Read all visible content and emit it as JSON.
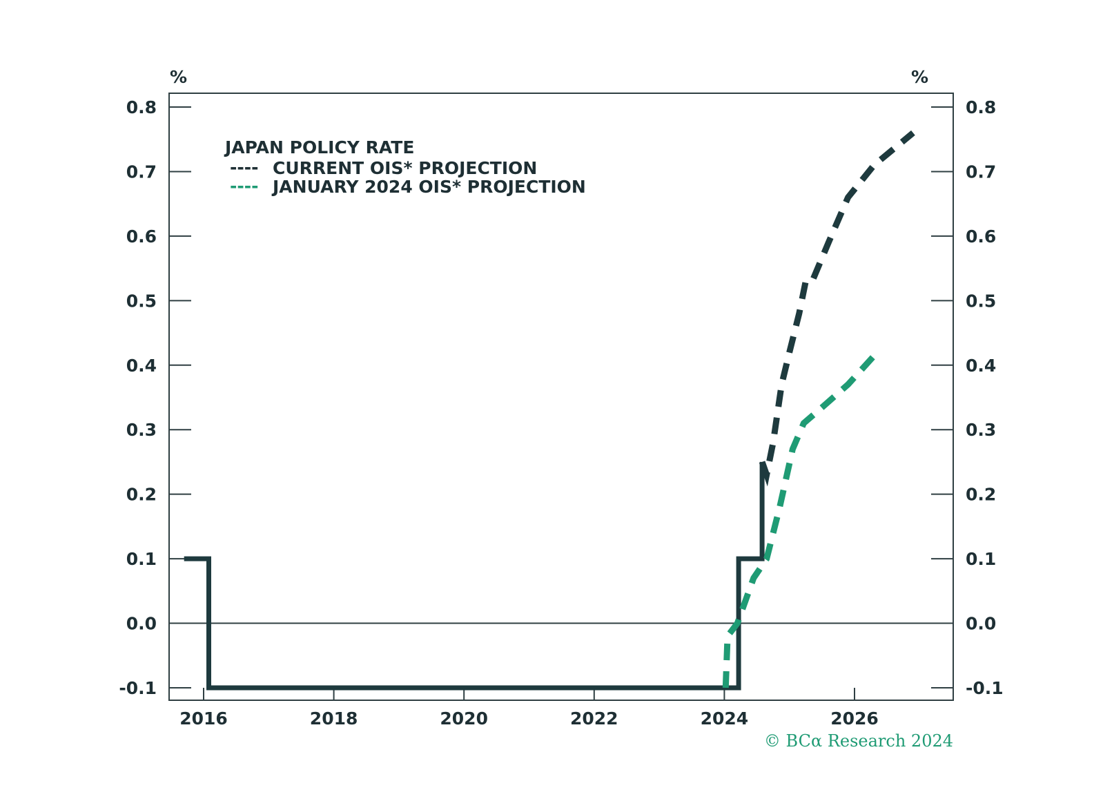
{
  "chart_data": {
    "type": "line",
    "title": "",
    "xlabel": "",
    "ylabel": "%",
    "ylabel_right": "%",
    "xlim": [
      2015.5,
      2027.5
    ],
    "ylim": [
      -0.1,
      0.8
    ],
    "x_ticks": [
      2016,
      2018,
      2020,
      2022,
      2024,
      2026
    ],
    "y_ticks": [
      -0.1,
      0.0,
      0.1,
      0.2,
      0.3,
      0.4,
      0.5,
      0.6,
      0.7,
      0.8
    ],
    "y_tick_labels": [
      "-0.1",
      "0.0",
      "0.1",
      "0.2",
      "0.3",
      "0.4",
      "0.5",
      "0.6",
      "0.7",
      "0.8"
    ],
    "grid": false,
    "zero_line": true,
    "legend_position": "top-left",
    "legend_title": "JAPAN POLICY RATE",
    "colors": {
      "policy_rate": "#1e3a3e",
      "current_ois": "#1e3a3e",
      "january_ois": "#1f9b74",
      "axis": "#2f3f42",
      "copyright": "#1f9b74"
    },
    "series": [
      {
        "key": "policy_rate",
        "style": "step",
        "x": [
          2015.7,
          2016.08,
          2016.08,
          2024.22,
          2024.22,
          2024.58,
          2024.58
        ],
        "y": [
          0.1,
          0.1,
          -0.1,
          -0.1,
          0.1,
          0.1,
          0.25
        ]
      },
      {
        "key": "current_ois",
        "name": "CURRENT OIS* PROJECTION",
        "legend_sample": "----",
        "style": "dashed",
        "x": [
          2024.58,
          2024.65,
          2024.75,
          2024.88,
          2025.0,
          2025.15,
          2025.25,
          2025.35,
          2025.6,
          2025.9,
          2026.3,
          2026.9
        ],
        "y": [
          0.25,
          0.23,
          0.28,
          0.37,
          0.42,
          0.48,
          0.53,
          0.53,
          0.59,
          0.66,
          0.71,
          0.76
        ]
      },
      {
        "key": "january_ois",
        "name": "JANUARY 2024 OIS* PROJECTION",
        "legend_sample": "----",
        "style": "dashed",
        "x": [
          2024.02,
          2024.05,
          2024.2,
          2024.45,
          2024.65,
          2024.85,
          2025.05,
          2025.22,
          2025.45,
          2025.9,
          2026.35
        ],
        "y": [
          -0.1,
          -0.02,
          0.0,
          0.07,
          0.1,
          0.18,
          0.27,
          0.31,
          0.33,
          0.37,
          0.42
        ]
      }
    ],
    "copyright": "© BCα Research 2024"
  }
}
